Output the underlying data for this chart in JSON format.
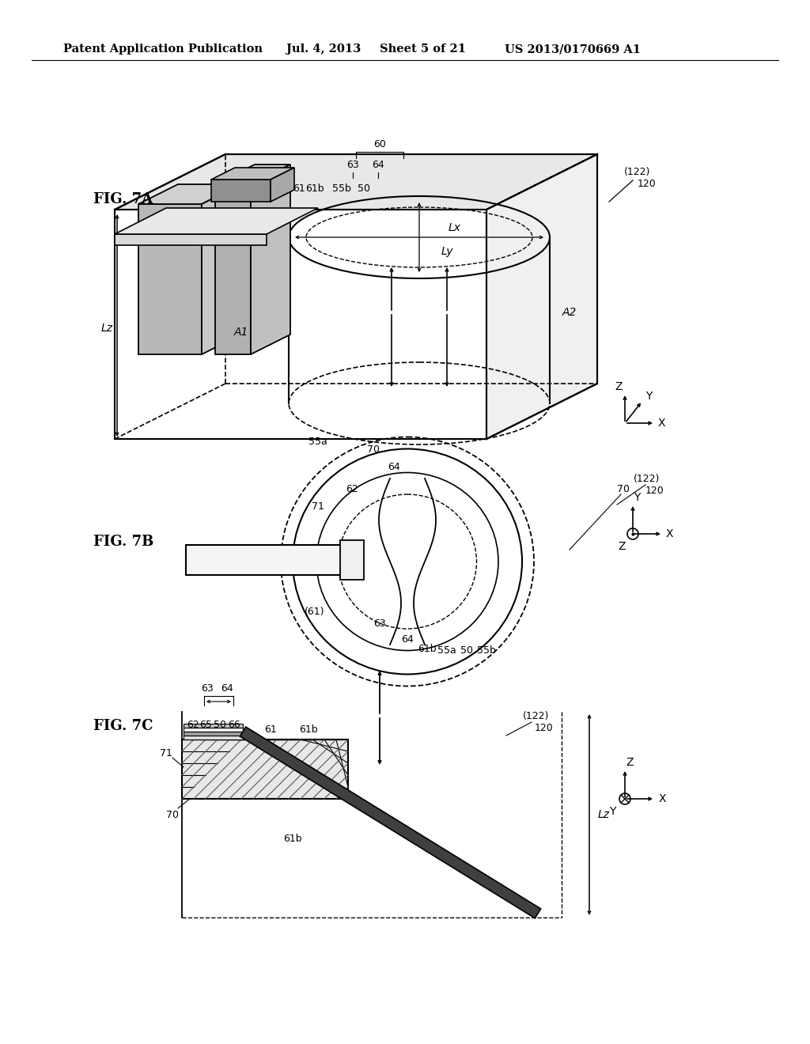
{
  "background_color": "#ffffff",
  "header_text": "Patent Application Publication",
  "header_date": "Jul. 4, 2013",
  "header_sheet": "Sheet 5 of 21",
  "header_patent": "US 2013/0170669 A1"
}
